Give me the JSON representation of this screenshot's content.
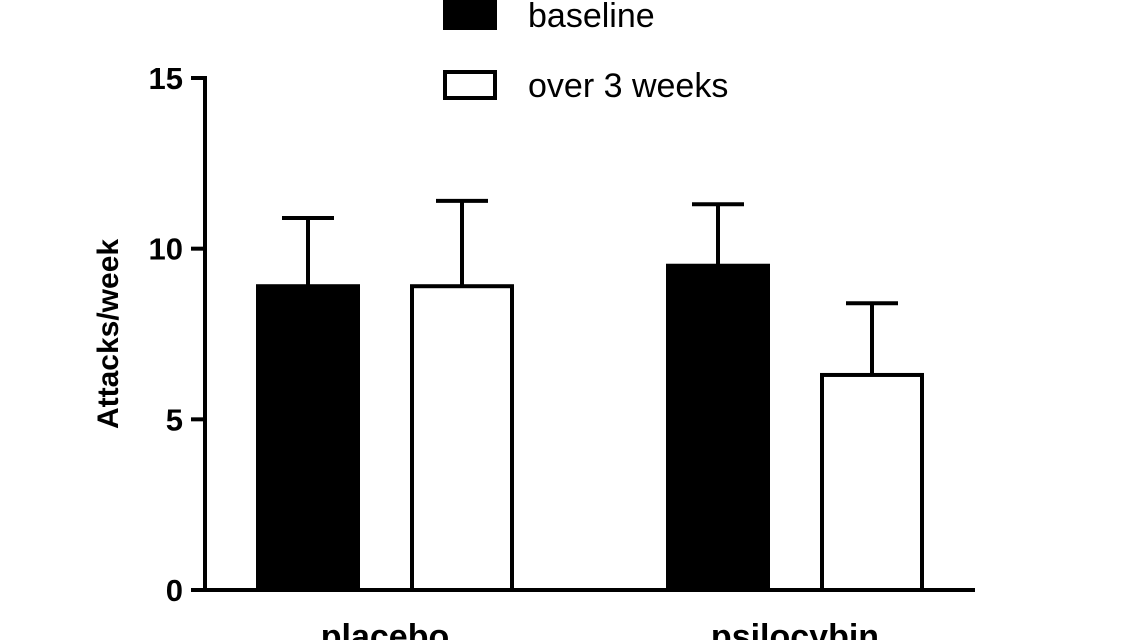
{
  "chart_data": {
    "type": "bar",
    "title": "",
    "xlabel": "",
    "ylabel": "Attacks/week",
    "ylim": [
      0,
      15
    ],
    "yticks": [
      "0",
      "5",
      "10",
      "15"
    ],
    "categories": [
      "placebo",
      "psilocybin"
    ],
    "legend_position": "top",
    "grid": false,
    "series": [
      {
        "name": "baseline",
        "color": "#000000",
        "values": [
          8.9,
          9.5
        ],
        "error_upper": [
          10.9,
          11.3
        ]
      },
      {
        "name": "over 3 weeks",
        "color": "#ffffff",
        "values": [
          8.9,
          6.3
        ],
        "error_upper": [
          11.4,
          8.4
        ]
      }
    ]
  }
}
